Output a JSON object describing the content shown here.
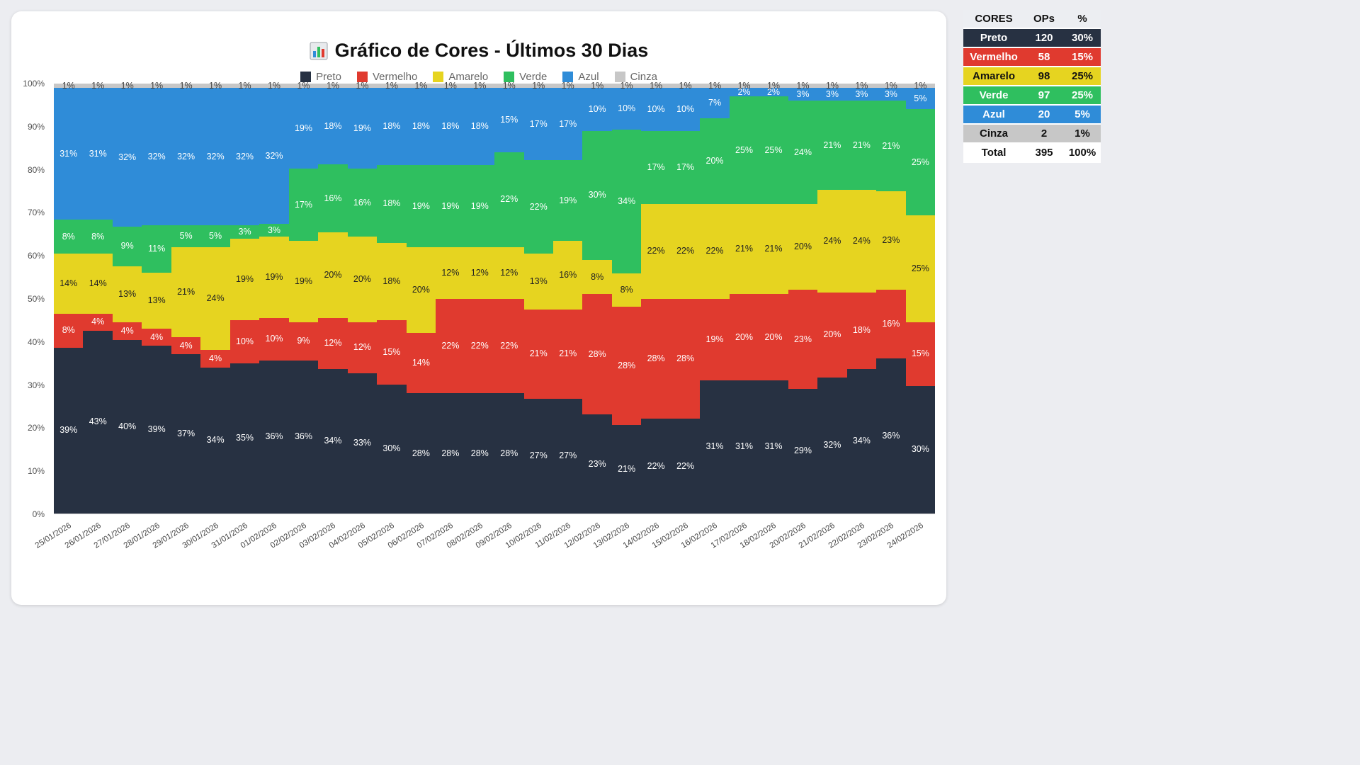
{
  "title": "Gráfico de Cores - Últimos 30 Dias",
  "title_icon": "📊",
  "legend": [
    {
      "key": "preto",
      "label": "Preto",
      "color": "#273142"
    },
    {
      "key": "vermelho",
      "label": "Vermelho",
      "color": "#e03a2f"
    },
    {
      "key": "amarelo",
      "label": "Amarelo",
      "color": "#e6d420"
    },
    {
      "key": "verde",
      "label": "Verde",
      "color": "#2fbf5f"
    },
    {
      "key": "azul",
      "label": "Azul",
      "color": "#2f8cd8"
    },
    {
      "key": "cinza",
      "label": "Cinza",
      "color": "#c7c7c7"
    }
  ],
  "chart_data": {
    "type": "area",
    "stacked": true,
    "percent": true,
    "title": "Gráfico de Cores - Últimos 30 Dias",
    "ylim": [
      0,
      100
    ],
    "yticks": [
      "0%",
      "10%",
      "20%",
      "30%",
      "40%",
      "50%",
      "60%",
      "70%",
      "80%",
      "90%",
      "100%"
    ],
    "x": [
      "25/01/2026",
      "26/01/2026",
      "27/01/2026",
      "28/01/2026",
      "29/01/2026",
      "30/01/2026",
      "31/01/2026",
      "01/02/2026",
      "02/02/2026",
      "03/02/2026",
      "04/02/2026",
      "05/02/2026",
      "06/02/2026",
      "07/02/2026",
      "08/02/2026",
      "09/02/2026",
      "10/02/2026",
      "11/02/2026",
      "12/02/2026",
      "13/02/2026",
      "14/02/2026",
      "15/02/2026",
      "16/02/2026",
      "17/02/2026",
      "18/02/2026",
      "20/02/2026",
      "21/02/2026",
      "22/02/2026",
      "23/02/2026",
      "24/02/2026"
    ],
    "series": [
      {
        "key": "preto",
        "name": "Preto",
        "color": "#273142",
        "label_color": "#ffffff",
        "values": [
          39,
          43,
          40,
          39,
          37,
          34,
          35,
          36,
          36,
          34,
          33,
          30,
          28,
          28,
          28,
          28,
          27,
          27,
          23,
          21,
          22,
          22,
          31,
          31,
          31,
          29,
          32,
          34,
          36,
          30
        ]
      },
      {
        "key": "vermelho",
        "name": "Vermelho",
        "color": "#e03a2f",
        "label_color": "#ffffff",
        "values": [
          8,
          4,
          4,
          4,
          4,
          4,
          10,
          10,
          9,
          12,
          12,
          15,
          14,
          22,
          22,
          22,
          21,
          21,
          28,
          28,
          28,
          28,
          19,
          20,
          20,
          23,
          20,
          18,
          16,
          15
        ]
      },
      {
        "key": "amarelo",
        "name": "Amarelo",
        "color": "#e6d420",
        "label_color": "#222222",
        "values": [
          14,
          14,
          13,
          13,
          21,
          24,
          19,
          19,
          19,
          20,
          20,
          18,
          20,
          12,
          12,
          12,
          13,
          16,
          8,
          8,
          22,
          22,
          22,
          21,
          21,
          20,
          24,
          24,
          23,
          25
        ]
      },
      {
        "key": "verde",
        "name": "Verde",
        "color": "#2fbf5f",
        "label_color": "#ffffff",
        "values": [
          8,
          8,
          9,
          11,
          5,
          5,
          3,
          3,
          17,
          16,
          16,
          18,
          19,
          19,
          19,
          22,
          22,
          19,
          30,
          34,
          17,
          17,
          20,
          25,
          25,
          24,
          21,
          21,
          21,
          25
        ]
      },
      {
        "key": "azul",
        "name": "Azul",
        "color": "#2f8cd8",
        "label_color": "#ffffff",
        "values": [
          31,
          31,
          32,
          32,
          32,
          32,
          32,
          32,
          19,
          18,
          19,
          18,
          18,
          18,
          18,
          15,
          17,
          17,
          10,
          10,
          10,
          10,
          7,
          2,
          2,
          3,
          3,
          3,
          3,
          5
        ]
      },
      {
        "key": "cinza",
        "name": "Cinza",
        "color": "#c7c7c7",
        "label_color": "#444444",
        "values": [
          1,
          1,
          1,
          1,
          1,
          1,
          1,
          1,
          1,
          1,
          1,
          1,
          1,
          1,
          1,
          1,
          1,
          1,
          1,
          1,
          1,
          1,
          1,
          1,
          1,
          1,
          1,
          1,
          1,
          1
        ]
      }
    ]
  },
  "side_table": {
    "headers": [
      "CORES",
      "OPs",
      "%"
    ],
    "rows": [
      {
        "key": "preto",
        "label": "Preto",
        "ops": "120",
        "pct": "30%",
        "bg": "#273142",
        "fg": "#ffffff"
      },
      {
        "key": "vermelho",
        "label": "Vermelho",
        "ops": "58",
        "pct": "15%",
        "bg": "#e03a2f",
        "fg": "#ffffff"
      },
      {
        "key": "amarelo",
        "label": "Amarelo",
        "ops": "98",
        "pct": "25%",
        "bg": "#e6d420",
        "fg": "#111111"
      },
      {
        "key": "verde",
        "label": "Verde",
        "ops": "97",
        "pct": "25%",
        "bg": "#2fbf5f",
        "fg": "#ffffff"
      },
      {
        "key": "azul",
        "label": "Azul",
        "ops": "20",
        "pct": "5%",
        "bg": "#2f8cd8",
        "fg": "#ffffff"
      },
      {
        "key": "cinza",
        "label": "Cinza",
        "ops": "2",
        "pct": "1%",
        "bg": "#c7c7c7",
        "fg": "#111111"
      },
      {
        "key": "total",
        "label": "Total",
        "ops": "395",
        "pct": "100%",
        "bg": "#ffffff",
        "fg": "#111111"
      }
    ]
  }
}
